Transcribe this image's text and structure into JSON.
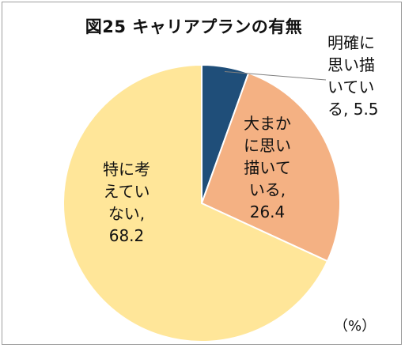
{
  "chart_data": {
    "type": "pie",
    "title": "図25 キャリアプランの有無",
    "unit": "（%）",
    "slices": [
      {
        "label": "明確に思い描いている",
        "value": 5.5,
        "color": "#1f4e79",
        "label_lines": [
          "明確に",
          "思い描",
          "いてい",
          "る, 5.5"
        ]
      },
      {
        "label": "大まかに思い描いている",
        "value": 26.4,
        "color": "#f4b183",
        "label_lines": [
          "大まか",
          "に思い",
          "描いて",
          "いる,",
          "26.4"
        ]
      },
      {
        "label": "特に考えていない",
        "value": 68.2,
        "color": "#ffe699",
        "label_lines": [
          "特に考",
          "えてい",
          "ない,",
          "68.2"
        ]
      }
    ]
  }
}
